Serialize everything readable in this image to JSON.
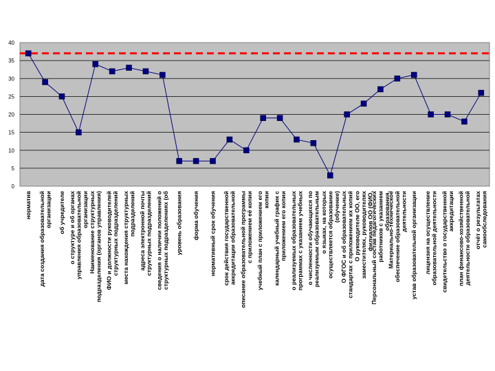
{
  "chart_data": {
    "type": "line",
    "title": "",
    "xlabel": "",
    "ylabel": "",
    "ylim": [
      0,
      40
    ],
    "yticks": [
      0,
      5,
      10,
      15,
      20,
      25,
      30,
      35,
      40
    ],
    "grid": "horizontal",
    "plot_background": "#c0c0c0",
    "series_color": "#000080",
    "marker_color": "#000080",
    "reference_color": "#ff0000",
    "categories": [
      "норматив",
      "дата создания образовательной организации",
      "об учредителе",
      "о структуре и об органах управления образовательной организации",
      "Наименование структурных подразделения (органов управления)",
      "ФИО и должности руководителей структурных подразделений",
      "места нахождения структурных подразделений",
      "адреса электронной почты структурных подразделений",
      "сведения о наличии положений о структурных подразделениях (об",
      "уровень образования",
      "форма обучения",
      "нормативный срок обучения",
      "срок действия государственной аккредитации образовательной",
      "описание образовательной программы с приложением её копии",
      "учебный план с приложением его копии",
      "календарный учебный график с приложением его копии",
      "о реализуемых образовательных программах с указанием учебных",
      "о численности обучающихся по реализуемым образовательным",
      "о языках, на которых осуществляется образование (обучение)",
      "О ФГОС и об образовательных стандартах с приложением их копий",
      "О руководителе ОО, его заместителях, руководителях филиалов ОО (ФИО,",
      "Персональный состав педагогических работников с указанием образования,",
      "Материально-техническое обеспечение образовательной деятельности",
      "устав образовательной организации",
      "лицензия на осуществление образовательной деятельности",
      "свидетельство о государственной аккредитации",
      "план финансово-хозяйственной деятельности образовательной",
      "отчёт о результатах самообследования"
    ],
    "series": [
      {
        "values": [
          37,
          29,
          25,
          15,
          34,
          32,
          33,
          32,
          31,
          7,
          7,
          7,
          13,
          10,
          19,
          19,
          13,
          12,
          3,
          20,
          23,
          27,
          30,
          31,
          20,
          20,
          18,
          26
        ]
      },
      {
        "values": [
          37,
          37,
          37,
          37,
          37,
          37,
          37,
          37,
          37,
          37,
          37,
          37,
          37,
          37,
          37,
          37,
          37,
          37,
          37,
          37,
          37,
          37,
          37,
          37,
          37,
          37,
          37,
          37
        ],
        "style": "dashed"
      }
    ]
  }
}
